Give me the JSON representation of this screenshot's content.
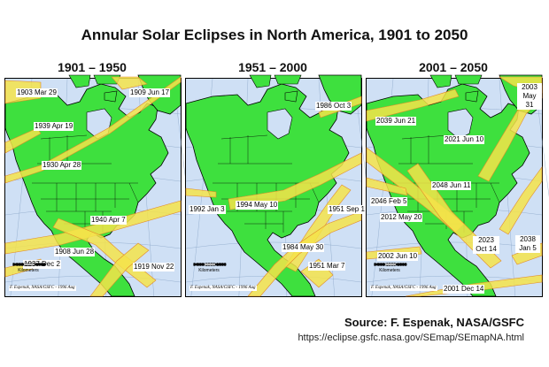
{
  "title": "Annular Solar Eclipses in North America, 1901 to 2050",
  "colors": {
    "ocean": "#cfe0f5",
    "land": "#3ee03e",
    "border": "#000000",
    "eclipse_path": "#f4e34a",
    "eclipse_path_edge": "#e28a2a",
    "graticule": "#8aa6c8"
  },
  "panels": [
    {
      "period": "1901 – 1950",
      "eclipses": [
        {
          "label": "1903 Mar 29"
        },
        {
          "label": "1909 Jun 17"
        },
        {
          "label": "1939 Apr 19"
        },
        {
          "label": "1930 Apr 28"
        },
        {
          "label": "1940 Apr 7"
        },
        {
          "label": "1908 Jun 28"
        },
        {
          "label": "1937 Dec 2"
        },
        {
          "label": "1919 Nov 22"
        }
      ]
    },
    {
      "period": "1951 – 2000",
      "eclipses": [
        {
          "label": "1986 Oct 3"
        },
        {
          "label": "1992 Jan 3"
        },
        {
          "label": "1994 May 10"
        },
        {
          "label": "1951 Sep 1"
        },
        {
          "label": "1984 May 30"
        },
        {
          "label": "1951 Mar 7"
        }
      ]
    },
    {
      "period": "2001 – 2050",
      "eclipses": [
        {
          "label": "2003 May 31"
        },
        {
          "label": "2039 Jun 21"
        },
        {
          "label": "2021 Jun 10"
        },
        {
          "label": "2048 Jun 11"
        },
        {
          "label": "2046 Feb 5"
        },
        {
          "label": "2012 May 20"
        },
        {
          "label": "2023 Oct 14"
        },
        {
          "label": "2038 Jan 5"
        },
        {
          "label": "2002 Jun 10"
        },
        {
          "label": "2001 Dec 14"
        }
      ]
    }
  ],
  "scale": {
    "ticks": "0  500  1000  1500",
    "unit": "Kilometers"
  },
  "map_credit": "F. Espenak, NASA/GSFC - 1996 Aug",
  "source": "Source: F. Espenak, NASA/GSFC",
  "source_url": "https://eclipse.gsfc.nasa.gov/SEmap/SEmapNA.html"
}
